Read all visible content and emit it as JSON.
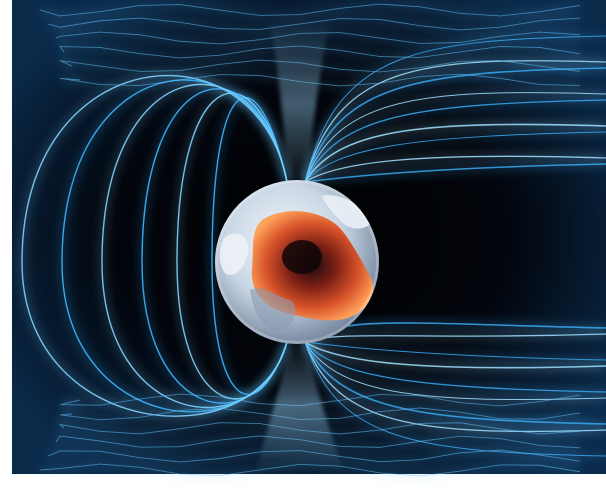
{
  "image": {
    "subject": "earth-magnetosphere-illustration",
    "elements": [
      "field-lines",
      "earth-globe",
      "molten-core",
      "polar-beams"
    ],
    "colors": {
      "background": "#ffffff",
      "space": "#02040a",
      "field_line": "#3fb6ff",
      "field_line_bright": "#bfe9ff",
      "globe_light": "#e6eef6",
      "globe_shadow": "#7e8ea3",
      "core_hot": "#ff7a3a",
      "core_deep": "#a8321a"
    }
  }
}
